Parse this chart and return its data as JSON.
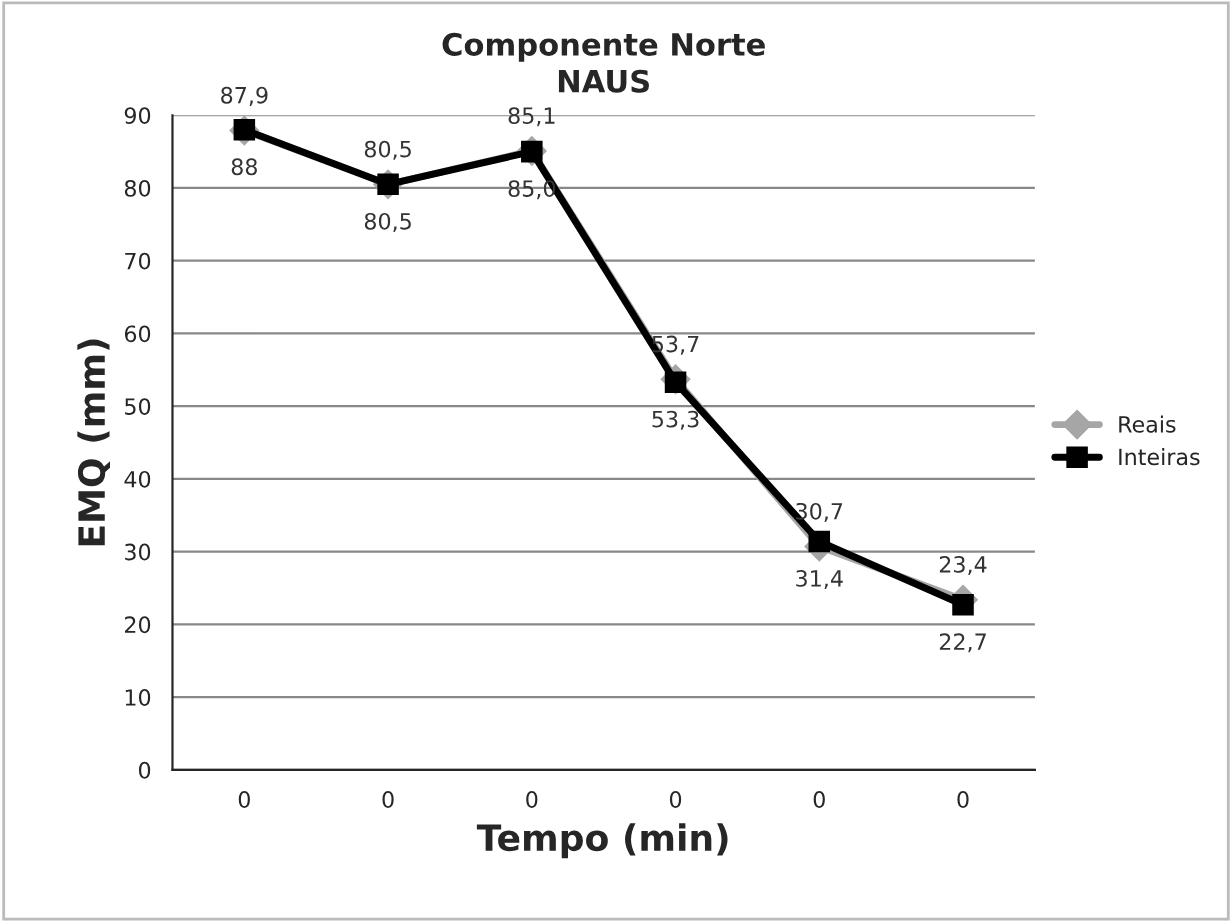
{
  "chart_data": {
    "type": "line",
    "title": "Componente Norte",
    "subtitle": "NAUS",
    "xlabel": "Tempo (min)",
    "ylabel": "EMQ (mm)",
    "categories": [
      "0",
      "0",
      "0",
      "0",
      "0",
      "0"
    ],
    "series": [
      {
        "name": "Reais",
        "color": "#a6a6a6",
        "marker": "diamond",
        "values": [
          87.9,
          80.5,
          85.1,
          53.7,
          30.7,
          23.4
        ],
        "value_labels": [
          "87,9",
          "80,5",
          "85,1",
          "53,7",
          "30,7",
          "23,4"
        ]
      },
      {
        "name": "Inteiras",
        "color": "#000000",
        "marker": "square",
        "values": [
          88,
          80.5,
          85.0,
          53.3,
          31.4,
          22.7
        ],
        "value_labels": [
          "88",
          "80,5",
          "85,0",
          "53,3",
          "31,4",
          "22,7"
        ]
      }
    ],
    "ylim": [
      0,
      90
    ],
    "yticks": [
      0,
      10,
      20,
      30,
      40,
      50,
      60,
      70,
      80,
      90
    ],
    "grid": "y",
    "legend": "right",
    "line_style": "solid"
  }
}
